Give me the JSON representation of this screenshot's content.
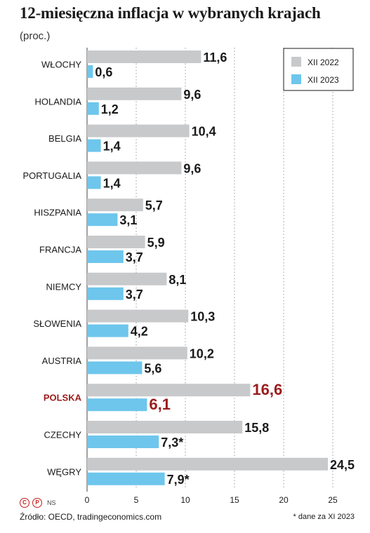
{
  "header": {
    "title": "12-miesięczna inflacja w wybranych krajach",
    "subtitle": "(proc.)"
  },
  "colors": {
    "xii_2022": "#c8c9cb",
    "xii_2023": "#6ec6ec",
    "highlight": "#9b1c1c",
    "text": "#1a1a1a"
  },
  "chart_data": {
    "type": "bar",
    "orientation": "horizontal",
    "categories": [
      "WŁOCHY",
      "HOLANDIA",
      "BELGIA",
      "PORTUGALIA",
      "HISZPANIA",
      "FRANCJA",
      "NIEMCY",
      "SŁOWENIA",
      "AUSTRIA",
      "POLSKA",
      "CZECHY",
      "WĘGRY"
    ],
    "highlight_category": "POLSKA",
    "series": [
      {
        "name": "XII 2022",
        "values": [
          11.6,
          9.6,
          10.4,
          9.6,
          5.7,
          5.9,
          8.1,
          10.3,
          10.2,
          16.6,
          15.8,
          24.5
        ],
        "labels": [
          "11,6",
          "9,6",
          "10,4",
          "9,6",
          "5,7",
          "5,9",
          "8,1",
          "10,3",
          "10,2",
          "16,6",
          "15,8",
          "24,5"
        ]
      },
      {
        "name": "XII 2023",
        "values": [
          0.6,
          1.2,
          1.4,
          1.4,
          3.1,
          3.7,
          3.7,
          4.2,
          5.6,
          6.1,
          7.3,
          7.9
        ],
        "labels": [
          "0,6",
          "1,2",
          "1,4",
          "1,4",
          "3,1",
          "3,7",
          "3,7",
          "4,2",
          "5,6",
          "6,1",
          "7,3*",
          "7,9*"
        ]
      }
    ],
    "xlim": [
      0,
      25
    ],
    "xticks": [
      "0",
      "5",
      "10",
      "15",
      "20",
      "25"
    ],
    "grid": true,
    "legend": "top-right"
  },
  "footer": {
    "logo_letters": [
      "C",
      "P"
    ],
    "logo_suffix": "NS",
    "source": "Źródło: OECD, tradingeconomics.com",
    "footnote": "* dane za XI 2023"
  }
}
